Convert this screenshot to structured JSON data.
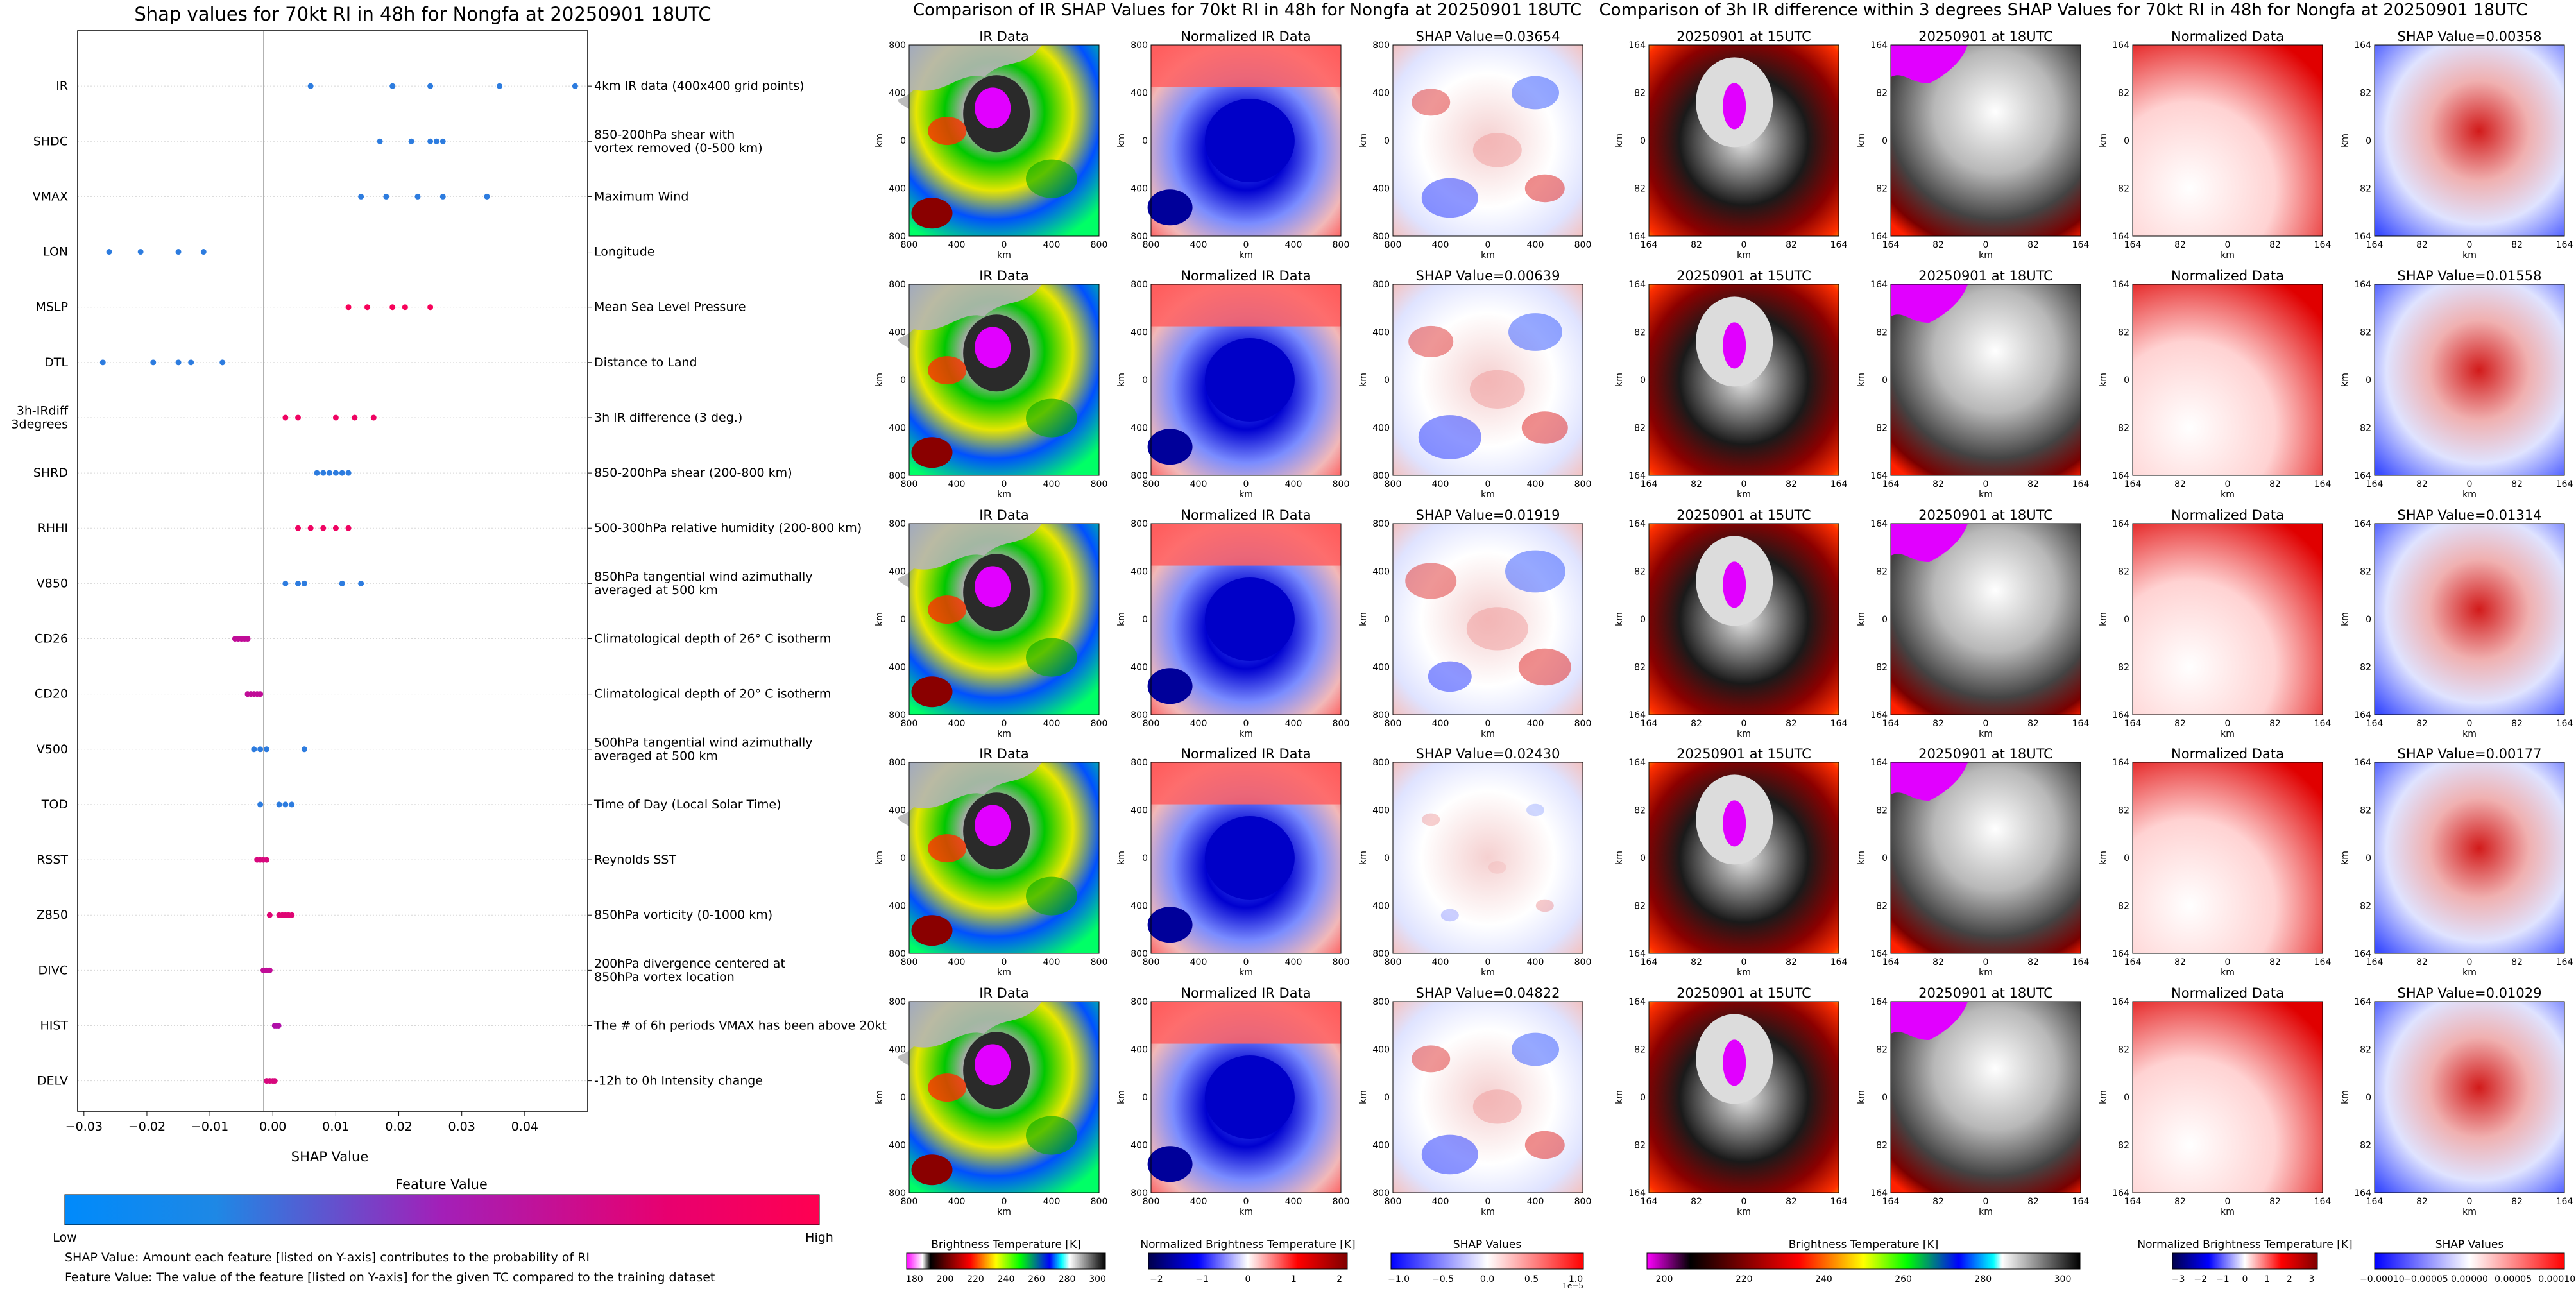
{
  "shap_chart_title": "Shap values for 70kt RI in 48h for Nongfa at 20250901 18UTC",
  "ir_section_title": "Comparison of IR SHAP Values for 70kt RI in 48h for Nongfa at 20250901 18UTC",
  "diff_section_title": "Comparison of 3h IR difference within 3 degrees SHAP Values for 70kt RI in 48h for Nongfa at 20250901 18UTC",
  "colorbar": {
    "title": "Feature Value",
    "low_label": "Low",
    "high_label": "High"
  },
  "notes": [
    "SHAP Value: Amount each feature [listed on Y-axis] contributes to the probability of RI",
    "Feature Value: The value of the feature [listed on Y-axis] for the given TC compared to the training dataset"
  ],
  "ir_columns": [
    "IR Data",
    "Normalized IR Data"
  ],
  "ir_shap_titles": [
    "SHAP Value=0.03654",
    "SHAP Value=0.00639",
    "SHAP Value=0.01919",
    "SHAP Value=0.02430",
    "SHAP Value=0.04822"
  ],
  "diff_columns": [
    "20250901 at 15UTC",
    "20250901 at 18UTC",
    "Normalized Data"
  ],
  "diff_shap_titles": [
    "SHAP Value=0.00358",
    "SHAP Value=0.01558",
    "SHAP Value=0.01314",
    "SHAP Value=0.00177",
    "SHAP Value=0.01029"
  ],
  "ir_axis": {
    "label": "km",
    "ticks": [
      "800",
      "400",
      "0",
      "400",
      "800"
    ]
  },
  "diff_axis": {
    "label": "km",
    "ticks": [
      "164",
      "82",
      "0",
      "82",
      "164"
    ]
  },
  "bottom_colorbars": [
    {
      "label": "Brightness Temperature [K]",
      "ticks": [
        "180",
        "200",
        "220",
        "240",
        "260",
        "280",
        "300"
      ]
    },
    {
      "label": "Normalized Brightness Temperature [K]",
      "ticks": [
        "−2",
        "−1",
        "0",
        "1",
        "2"
      ]
    },
    {
      "label": "SHAP Values",
      "ticks": [
        "−1.0",
        "−0.5",
        "0.0",
        "0.5",
        "1.0"
      ],
      "offset": "1e−5"
    },
    {
      "label": "Brightness Temperature [K]",
      "ticks": [
        "200",
        "220",
        "240",
        "260",
        "280",
        "300"
      ]
    },
    {
      "label": "Normalized Brightness Temperature [K]",
      "ticks": [
        "−3",
        "−2",
        "−1",
        "0",
        "1",
        "2",
        "3"
      ]
    },
    {
      "label": "SHAP Values",
      "ticks": [
        "−0.00010",
        "−0.00005",
        "0.00000",
        "0.00005",
        "0.00010"
      ]
    }
  ],
  "colors": {
    "low": "#1e88e5",
    "high": "#ff0051",
    "mid": "#b00fa8"
  },
  "chart_data": {
    "type": "scatter",
    "title": "Shap values for 70kt RI in 48h for Nongfa at 20250901 18UTC",
    "xlabel": "SHAP Value",
    "xlim": [
      -0.031,
      0.05
    ],
    "xticks": [
      "−0.03",
      "−0.02",
      "−0.01",
      "0.00",
      "0.01",
      "0.02",
      "0.03",
      "0.04"
    ],
    "xtick_values": [
      -0.03,
      -0.02,
      -0.01,
      0.0,
      0.01,
      0.02,
      0.03,
      0.04
    ],
    "features": [
      {
        "name": "IR",
        "lines": [
          "IR"
        ],
        "desc": [
          "4km IR data (400x400 grid points)"
        ],
        "values": [
          0.006,
          0.019,
          0.025,
          0.036,
          0.048
        ],
        "level": 0.05
      },
      {
        "name": "SHDC",
        "lines": [
          "SHDC"
        ],
        "desc": [
          "850-200hPa shear with",
          "vortex removed (0-500 km)"
        ],
        "values": [
          0.017,
          0.022,
          0.025,
          0.026,
          0.027
        ],
        "level": 0.05
      },
      {
        "name": "VMAX",
        "lines": [
          "VMAX"
        ],
        "desc": [
          "Maximum Wind"
        ],
        "values": [
          0.014,
          0.018,
          0.023,
          0.027,
          0.034
        ],
        "level": 0.05
      },
      {
        "name": "LON",
        "lines": [
          "LON"
        ],
        "desc": [
          "Longitude"
        ],
        "values": [
          -0.026,
          -0.021,
          -0.015,
          -0.011
        ],
        "level": 0.05
      },
      {
        "name": "MSLP",
        "lines": [
          "MSLP"
        ],
        "desc": [
          "Mean Sea Level Pressure"
        ],
        "values": [
          0.012,
          0.015,
          0.019,
          0.021,
          0.025
        ],
        "level": 0.95
      },
      {
        "name": "DTL",
        "lines": [
          "DTL"
        ],
        "desc": [
          "Distance to Land"
        ],
        "values": [
          -0.027,
          -0.019,
          -0.015,
          -0.013,
          -0.008
        ],
        "level": 0.05
      },
      {
        "name": "3h-IRdiff 3degrees",
        "lines": [
          "3h-IRdiff",
          "3degrees"
        ],
        "desc": [
          "3h IR difference (3 deg.)"
        ],
        "values": [
          0.002,
          0.004,
          0.01,
          0.013,
          0.016
        ],
        "level": 0.9
      },
      {
        "name": "SHRD",
        "lines": [
          "SHRD"
        ],
        "desc": [
          "850-200hPa shear (200-800 km)"
        ],
        "values": [
          0.007,
          0.008,
          0.009,
          0.01,
          0.011,
          0.012
        ],
        "level": 0.05
      },
      {
        "name": "RHHI",
        "lines": [
          "RHHI"
        ],
        "desc": [
          "500-300hPa relative humidity (200-800 km)"
        ],
        "values": [
          0.004,
          0.006,
          0.008,
          0.01,
          0.012
        ],
        "level": 0.9
      },
      {
        "name": "V850",
        "lines": [
          "V850"
        ],
        "desc": [
          "850hPa tangential wind azimuthally",
          "averaged at 500 km"
        ],
        "values": [
          0.002,
          0.004,
          0.005,
          0.011,
          0.014
        ],
        "level": 0.05
      },
      {
        "name": "CD26",
        "lines": [
          "CD26"
        ],
        "desc": [
          "Climatological depth of 26° C isotherm"
        ],
        "values": [
          -0.006,
          -0.0055,
          -0.005,
          -0.0045,
          -0.004
        ],
        "level": 0.6
      },
      {
        "name": "CD20",
        "lines": [
          "CD20"
        ],
        "desc": [
          "Climatological depth of 20° C isotherm"
        ],
        "values": [
          -0.004,
          -0.0035,
          -0.003,
          -0.0025,
          -0.002
        ],
        "level": 0.6
      },
      {
        "name": "V500",
        "lines": [
          "V500"
        ],
        "desc": [
          "500hPa tangential wind azimuthally",
          "averaged at 500 km"
        ],
        "values": [
          -0.003,
          -0.002,
          -0.001,
          0.005
        ],
        "level": 0.05
      },
      {
        "name": "TOD",
        "lines": [
          "TOD"
        ],
        "desc": [
          "Time of Day (Local Solar Time)"
        ],
        "values": [
          -0.002,
          0.001,
          0.002,
          0.003
        ],
        "level": 0.05
      },
      {
        "name": "RSST",
        "lines": [
          "RSST"
        ],
        "desc": [
          "Reynolds SST"
        ],
        "values": [
          -0.0025,
          -0.002,
          -0.0015,
          -0.001
        ],
        "level": 0.75
      },
      {
        "name": "Z850",
        "lines": [
          "Z850"
        ],
        "desc": [
          "850hPa vorticity (0-1000 km)"
        ],
        "values": [
          -0.0005,
          0.001,
          0.0015,
          0.002,
          0.0025,
          0.003
        ],
        "level": 0.8
      },
      {
        "name": "DIVC",
        "lines": [
          "DIVC"
        ],
        "desc": [
          "200hPa divergence centered at",
          "850hPa vortex location"
        ],
        "values": [
          -0.0015,
          -0.001,
          -0.0005
        ],
        "level": 0.6
      },
      {
        "name": "HIST",
        "lines": [
          "HIST"
        ],
        "desc": [
          "The # of 6h periods VMAX has been above 20kt"
        ],
        "values": [
          0.0003,
          0.0006,
          0.0009
        ],
        "level": 0.5
      },
      {
        "name": "DELV",
        "lines": [
          "DELV"
        ],
        "desc": [
          "-12h to 0h Intensity change"
        ],
        "values": [
          -0.001,
          -0.0005,
          0.0,
          0.0003
        ],
        "level": 0.75
      }
    ]
  }
}
